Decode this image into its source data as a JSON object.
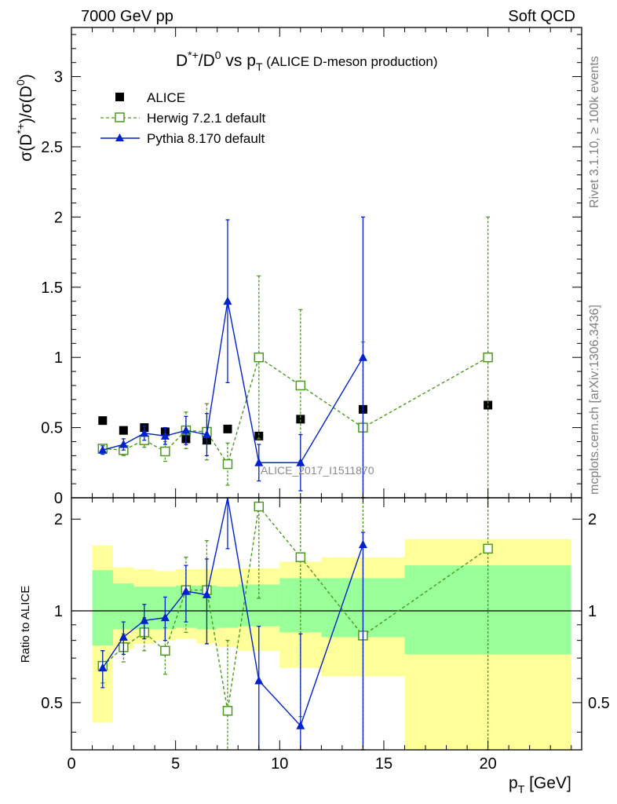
{
  "header": {
    "left": "7000 GeV pp",
    "right": "Soft QCD"
  },
  "side_labels": {
    "rivet": "Rivet 3.1.10, ≥ 100k events",
    "mcplots": "mcplots.cern.ch [arXiv:1306.3436]"
  },
  "watermark": "ALICE_2017_I1511870",
  "chart_data": [
    {
      "type": "scatter",
      "panel": "main",
      "title": "D*+/D0 vs pT (ALICE D-meson production)",
      "ylabel": "σ(D*+)/σ(D0)",
      "ylim": [
        0,
        3.35
      ],
      "xlim": [
        0,
        24.5
      ],
      "yticks": [
        0,
        0.5,
        1,
        1.5,
        2,
        2.5,
        3
      ],
      "ytick_labels": [
        "0",
        "0.5",
        "1",
        "1.5",
        "2",
        "2.5",
        "3"
      ],
      "legend": {
        "placement": "top-left",
        "entries": [
          "ALICE",
          "Herwig 7.2.1 default",
          "Pythia 8.170 default"
        ]
      },
      "series": [
        {
          "name": "ALICE",
          "color": "#000000",
          "marker": "filled-square",
          "x": [
            1.5,
            2.5,
            3.5,
            4.5,
            5.5,
            6.5,
            7.5,
            9,
            11,
            14,
            20
          ],
          "y": [
            0.55,
            0.48,
            0.5,
            0.47,
            0.42,
            0.41,
            0.49,
            0.44,
            0.56,
            0.63,
            0.66
          ],
          "yerr": [
            0.015,
            0.015,
            0.015,
            0.015,
            0.015,
            0.015,
            0.015,
            0.015,
            0.02,
            0.02,
            0.02
          ]
        },
        {
          "name": "Herwig 7.2.1 default",
          "color": "#4a9a1c",
          "marker": "open-square",
          "line": "dashed",
          "x": [
            1.5,
            2.5,
            3.5,
            4.5,
            5.5,
            6.5,
            7.5,
            9,
            11,
            14,
            20
          ],
          "y": [
            0.35,
            0.34,
            0.41,
            0.33,
            0.48,
            0.47,
            0.24,
            1.0,
            0.8,
            0.5,
            1.0
          ],
          "yerr": [
            0.03,
            0.04,
            0.05,
            0.07,
            0.13,
            0.2,
            0.15,
            0.58,
            0.54,
            0.61,
            1.0
          ]
        },
        {
          "name": "Pythia 8.170 default",
          "color": "#0022cc",
          "marker": "filled-triangle",
          "line": "solid",
          "x": [
            1.5,
            2.5,
            3.5,
            4.5,
            5.5,
            6.5,
            7.5,
            9,
            11,
            14
          ],
          "y": [
            0.34,
            0.38,
            0.46,
            0.44,
            0.48,
            0.45,
            1.4,
            0.25,
            0.25,
            1.0
          ],
          "yerr": [
            0.03,
            0.04,
            0.05,
            0.06,
            0.1,
            0.15,
            0.58,
            0.13,
            0.2,
            1.0
          ],
          "xerr_segments": [
            [
              9,
              11,
              0.25
            ]
          ]
        }
      ]
    },
    {
      "type": "scatter",
      "panel": "ratio",
      "ylabel": "Ratio to ALICE",
      "xlabel": "pT [GeV]",
      "xlim": [
        0,
        24.5
      ],
      "ylim": [
        0.35,
        2.35
      ],
      "xticks": [
        0,
        5,
        10,
        15,
        20
      ],
      "xtick_labels": [
        "0",
        "5",
        "10",
        "15",
        "20"
      ],
      "yticks": [
        0.5,
        1,
        2
      ],
      "ytick_labels": [
        "0.5",
        "1",
        "2"
      ],
      "reference_line": 1,
      "bands": [
        {
          "x": [
            1,
            2
          ],
          "inner": [
            0.77,
            1.36
          ],
          "outer": [
            0.43,
            1.64
          ]
        },
        {
          "x": [
            2,
            3
          ],
          "inner": [
            0.87,
            1.23
          ],
          "outer": [
            0.75,
            1.39
          ]
        },
        {
          "x": [
            3,
            4
          ],
          "inner": [
            0.87,
            1.2
          ],
          "outer": [
            0.78,
            1.37
          ]
        },
        {
          "x": [
            4,
            5
          ],
          "inner": [
            0.87,
            1.2
          ],
          "outer": [
            0.8,
            1.35
          ]
        },
        {
          "x": [
            5,
            6
          ],
          "inner": [
            0.88,
            1.21
          ],
          "outer": [
            0.81,
            1.37
          ]
        },
        {
          "x": [
            6,
            7
          ],
          "inner": [
            0.87,
            1.21
          ],
          "outer": [
            0.78,
            1.37
          ]
        },
        {
          "x": [
            7,
            8
          ],
          "inner": [
            0.88,
            1.2
          ],
          "outer": [
            0.76,
            1.38
          ]
        },
        {
          "x": [
            8,
            10
          ],
          "inner": [
            0.89,
            1.22
          ],
          "outer": [
            0.74,
            1.38
          ]
        },
        {
          "x": [
            10,
            12
          ],
          "inner": [
            0.85,
            1.28
          ],
          "outer": [
            0.65,
            1.45
          ]
        },
        {
          "x": [
            12,
            16
          ],
          "inner": [
            0.82,
            1.28
          ],
          "outer": [
            0.61,
            1.5
          ]
        },
        {
          "x": [
            16,
            24
          ],
          "inner": [
            0.72,
            1.41
          ],
          "outer": [
            0.35,
            1.72
          ]
        }
      ],
      "series": [
        {
          "name": "Herwig 7.2.1 default",
          "color": "#4a9a1c",
          "marker": "open-square",
          "line": "dashed",
          "x": [
            1.5,
            2.5,
            3.5,
            4.5,
            5.5,
            6.5,
            7.5,
            9,
            11,
            14,
            20
          ],
          "y": [
            0.66,
            0.76,
            0.85,
            0.74,
            1.17,
            1.17,
            0.47,
            2.2,
            1.5,
            0.83,
            1.6
          ],
          "ylo": [
            0.58,
            0.68,
            0.74,
            0.62,
            0.85,
            0.78,
            0.3,
            1.1,
            0.45,
            0.3,
            0.35
          ],
          "yhi": [
            0.74,
            0.84,
            0.95,
            0.88,
            1.5,
            1.7,
            0.8,
            2.35,
            2.35,
            2.35,
            2.35
          ]
        },
        {
          "name": "Pythia 8.170 default",
          "color": "#0022cc",
          "marker": "filled-triangle",
          "line": "solid",
          "x": [
            1.5,
            2.5,
            3.5,
            4.5,
            5.5,
            6.5,
            7.5,
            9,
            11,
            14
          ],
          "y": [
            0.65,
            0.82,
            0.93,
            0.95,
            1.16,
            1.13,
            2.35,
            0.59,
            0.42,
            1.65
          ],
          "ylo": [
            0.56,
            0.72,
            0.81,
            0.8,
            0.92,
            0.78,
            1.6,
            0.35,
            0.35,
            0.35
          ],
          "yhi": [
            0.74,
            0.92,
            1.05,
            1.11,
            1.41,
            1.48,
            2.35,
            0.89,
            0.84,
            1.81
          ]
        }
      ]
    }
  ]
}
